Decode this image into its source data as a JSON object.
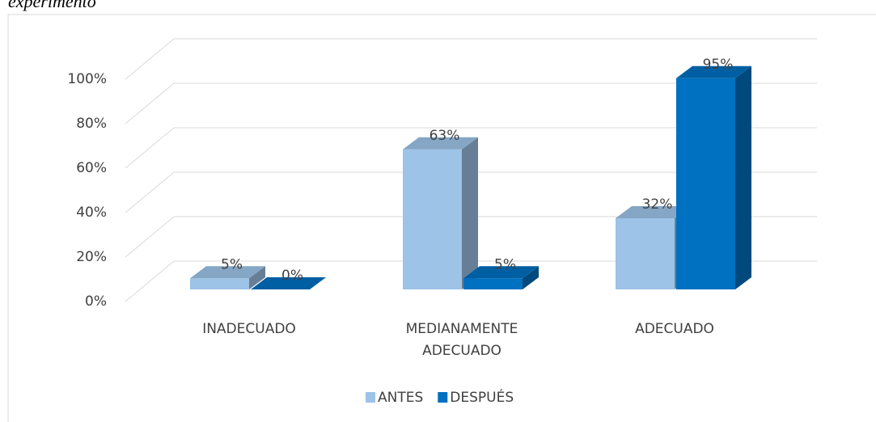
{
  "chart_data": {
    "type": "bar3d",
    "title": "experimento",
    "categories": [
      "INADECUADO",
      "MEDIANAMENTE ADECUADO",
      "ADECUADO"
    ],
    "series": [
      {
        "name": "ANTES",
        "color": "#9dc3e6",
        "values": [
          5,
          63,
          32
        ],
        "value_labels": [
          "5%",
          "63%",
          "32%"
        ]
      },
      {
        "name": "DESPUÉS",
        "color": "#0070c0",
        "values": [
          0,
          5,
          95
        ],
        "value_labels": [
          "0%",
          "5%",
          "95%"
        ]
      }
    ],
    "ylim": [
      0,
      100
    ],
    "yticks": [
      {
        "value": 0,
        "label": "0%"
      },
      {
        "value": 20,
        "label": "20%"
      },
      {
        "value": 40,
        "label": "40%"
      },
      {
        "value": 60,
        "label": "60%"
      },
      {
        "value": 80,
        "label": "80%"
      },
      {
        "value": 100,
        "label": "100%"
      }
    ],
    "grid": true,
    "legend": "bottom"
  }
}
